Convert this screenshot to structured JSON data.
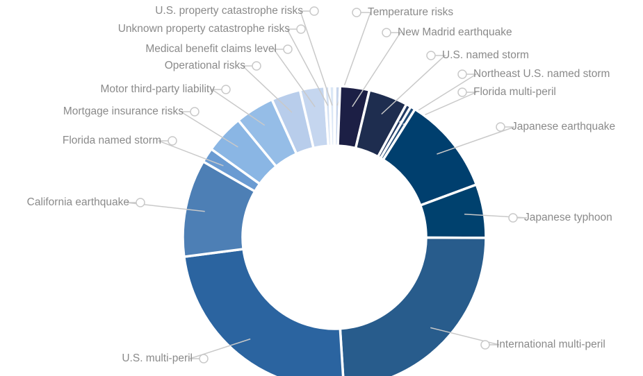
{
  "chart_data": {
    "type": "donut",
    "categories": [
      "Temperature risks",
      "New Madrid earthquake",
      "U.S. named storm",
      "Northeast U.S. named storm",
      "Florida multi-peril",
      "Japanese earthquake",
      "Japanese typhoon",
      "International multi-peril",
      "U.S. multi-peril",
      "California earthquake",
      "Florida named storm",
      "Mortgage insurance risks",
      "Motor third-party liability",
      "Operational risks",
      "Medical benefit claims level",
      "Unknown property catastrophe risks",
      "U.S. property catastrophe risks"
    ],
    "values": [
      0.5,
      3,
      4,
      0.5,
      0.5,
      10,
      5.5,
      23,
      23,
      10,
      1.5,
      4,
      4,
      3,
      2.5,
      0.5,
      0.5
    ],
    "colors": [
      "#c7d5ec",
      "#1c1f45",
      "#1e2d4f",
      "#213a63",
      "#1f4a77",
      "#003f6e",
      "#00416e",
      "#285c8c",
      "#2b64a0",
      "#4d7fb5",
      "#6a9bd2",
      "#8ab6e4",
      "#95bde7",
      "#b8cdeb",
      "#c5d6ef",
      "#d4e1f3",
      "#dbe7f6"
    ]
  }
}
